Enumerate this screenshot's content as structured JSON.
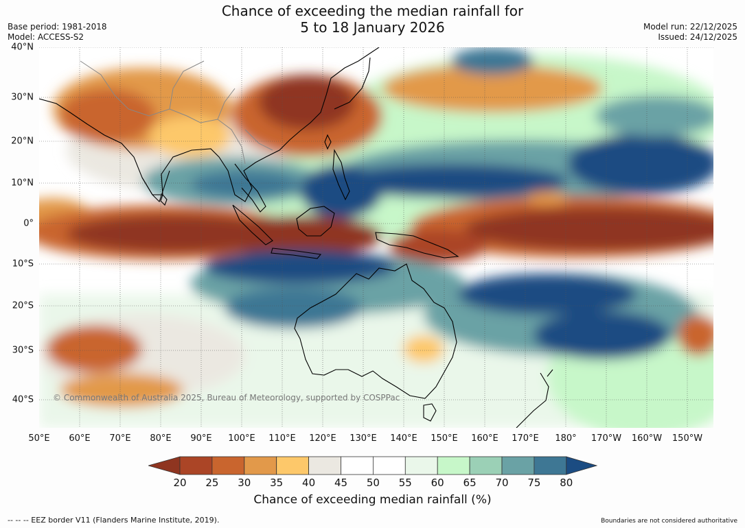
{
  "header": {
    "title_line1": "Chance of exceeding the median rainfall for",
    "title_line2": "5 to 18 January 2026",
    "base_period": "Base period: 1981-2018",
    "model": "Model: ACCESS-S2",
    "model_run": "Model run: 22/12/2025",
    "issued": "Issued: 24/12/2025"
  },
  "map": {
    "lat_labels": [
      "40°N",
      "30°N",
      "20°N",
      "10°N",
      "0°",
      "10°S",
      "20°S",
      "30°S",
      "40°S"
    ],
    "lon_labels": [
      "50°E",
      "60°E",
      "70°E",
      "80°E",
      "90°E",
      "100°E",
      "110°E",
      "120°E",
      "130°E",
      "140°E",
      "150°E",
      "160°E",
      "170°E",
      "180°",
      "170°W",
      "160°W",
      "150°W"
    ],
    "copyright": "© Commonwealth of Australia 2025, Bureau of Meteorology, supported by COSPPac"
  },
  "colorbar": {
    "title": "Chance of exceeding median rainfall (%)",
    "ticks": [
      "20",
      "25",
      "30",
      "35",
      "40",
      "45",
      "50",
      "55",
      "60",
      "65",
      "70",
      "75",
      "80"
    ],
    "colors": [
      "#8f3520",
      "#ab4526",
      "#c9652e",
      "#e2994a",
      "#fdc86a",
      "#ebe8e1",
      "#ffffff",
      "#ffffff",
      "#eaf7ea",
      "#c7f7c9",
      "#9bd0b6",
      "#6aa2a5",
      "#3e7794",
      "#1b4c82"
    ]
  },
  "footer": {
    "eez_note": "--  --  -- EEZ border V11 (Flanders Marine Institute, 2019).",
    "boundaries_note": "Boundaries are not considered authoritative"
  }
}
